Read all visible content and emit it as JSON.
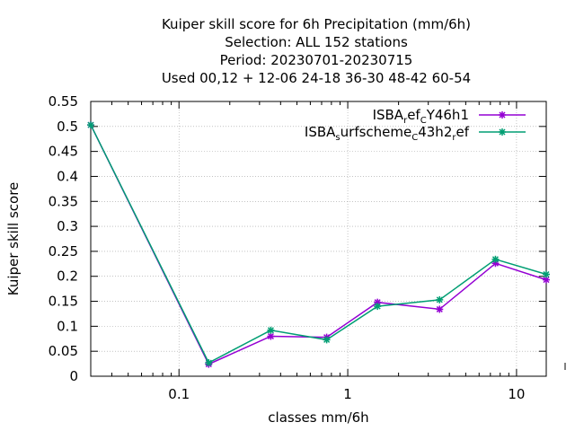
{
  "chart_data": {
    "type": "line",
    "title_lines": [
      "Kuiper skill score  for 6h Precipitation (mm/6h)",
      "Selection: ALL    152 stations",
      "Period: 20230701-20230715",
      "Used  00,12  + 12-06 24-18 36-30 48-42 60-54"
    ],
    "xlabel": "classes mm/6h",
    "ylabel": "Kuiper skill score",
    "x_scale": "log",
    "xlim": [
      0.03,
      15
    ],
    "ylim": [
      0,
      0.55
    ],
    "x_ticks": [
      0.1,
      1,
      10
    ],
    "x_tick_labels": [
      "0.1",
      "1",
      "10"
    ],
    "y_ticks": [
      0,
      0.05,
      0.1,
      0.15,
      0.2,
      0.25,
      0.3,
      0.35,
      0.4,
      0.45,
      0.5,
      0.55
    ],
    "y_tick_labels": [
      "0",
      "0.05",
      "0.1",
      "0.15",
      "0.2",
      "0.25",
      "0.3",
      "0.35",
      "0.4",
      "0.45",
      "0.5",
      "0.55"
    ],
    "grid": true,
    "legend_position": "top-right",
    "series": [
      {
        "name_parts": [
          {
            "t": "ISBA",
            "sub": false
          },
          {
            "t": "r",
            "sub": true
          },
          {
            "t": "ef",
            "sub": false
          },
          {
            "t": "C",
            "sub": true
          },
          {
            "t": "Y46h1",
            "sub": false
          }
        ],
        "color": "#9400d3",
        "x": [
          0.03,
          0.15,
          0.35,
          0.75,
          1.5,
          3.5,
          7.5,
          15
        ],
        "y": [
          0.503,
          0.024,
          0.08,
          0.078,
          0.148,
          0.134,
          0.226,
          0.193
        ]
      },
      {
        "name_parts": [
          {
            "t": "ISBA",
            "sub": false
          },
          {
            "t": "s",
            "sub": true
          },
          {
            "t": "urfscheme",
            "sub": false
          },
          {
            "t": "C",
            "sub": true
          },
          {
            "t": "43h2",
            "sub": false
          },
          {
            "t": "r",
            "sub": true
          },
          {
            "t": "ef",
            "sub": false
          }
        ],
        "color": "#009e73",
        "x": [
          0.03,
          0.15,
          0.35,
          0.75,
          1.5,
          3.5,
          7.5,
          15
        ],
        "y": [
          0.503,
          0.027,
          0.092,
          0.073,
          0.14,
          0.153,
          0.234,
          0.204
        ]
      }
    ]
  }
}
